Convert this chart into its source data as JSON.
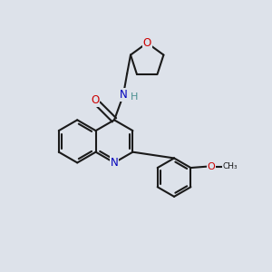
{
  "background_color": "#dde2ea",
  "bond_color": "#1a1a1a",
  "atom_colors": {
    "O": "#cc0000",
    "N": "#0000bb",
    "H": "#4a9090",
    "C": "#1a1a1a"
  },
  "figsize": [
    3.0,
    3.0
  ],
  "dpi": 100
}
